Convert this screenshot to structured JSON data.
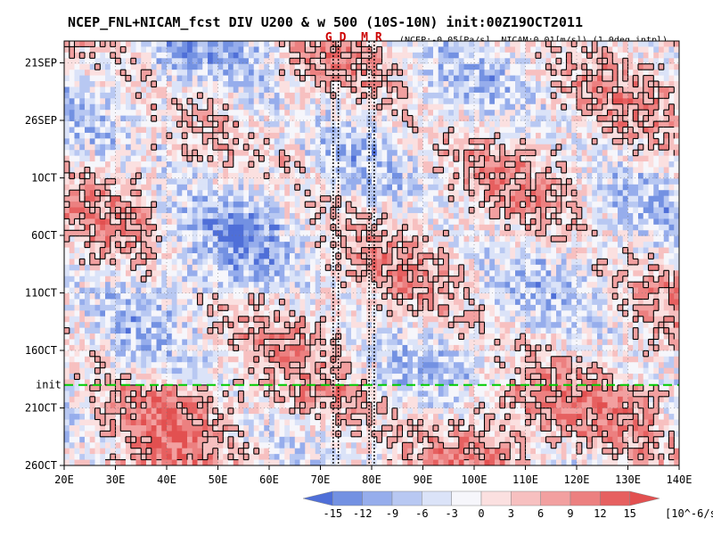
{
  "chart_data": {
    "type": "heatmap",
    "title": "NCEP_FNL+NICAM_fcst DIV U200 & w 500 (10S-10N) init:00Z19OCT2011",
    "subtitle": "(NCEP:-0.05[Pa/s], NICAM:0.01[m/s]) (1.0deg intpl)",
    "x_axis": {
      "ticks": [
        "20E",
        "30E",
        "40E",
        "50E",
        "60E",
        "70E",
        "80E",
        "90E",
        "100E",
        "110E",
        "120E",
        "130E",
        "140E"
      ],
      "range": [
        20,
        140
      ]
    },
    "y_axis": {
      "ticks": [
        "21SEP",
        "26SEP",
        "1OCT",
        "6OCT",
        "11OCT",
        "16OCT",
        "21OCT",
        "26OCT"
      ],
      "range_days_from_21SEP": [
        -1.9,
        35
      ]
    },
    "markers": [
      {
        "label": "G",
        "lon": 72.5,
        "color": "#cc0000"
      },
      {
        "label": "D",
        "lon": 73.5,
        "color": "#cc0000"
      },
      {
        "label": "M",
        "lon": 79.5,
        "color": "#cc0000"
      },
      {
        "label": "R",
        "lon": 80.5,
        "color": "#cc0000"
      }
    ],
    "init_line": {
      "label": "init",
      "day": 28,
      "color": "#00cc00"
    },
    "colorbar": {
      "levels": [
        -15,
        -12,
        -9,
        -6,
        -3,
        0,
        3,
        6,
        9,
        12,
        15
      ],
      "tick_labels": [
        "-15",
        "-12",
        "-9",
        "-6",
        "-3",
        "0",
        "3",
        "6",
        "9",
        "12",
        "15"
      ],
      "colors": [
        "#4f6fd8",
        "#7391e2",
        "#96adec",
        "#b8c8f2",
        "#dbe3f8",
        "#f6f6fb",
        "#fbe0e0",
        "#f7c0c0",
        "#f2a0a0",
        "#ec8080",
        "#e66060",
        "#e25050"
      ],
      "units": "[10^-6/s]"
    }
  }
}
